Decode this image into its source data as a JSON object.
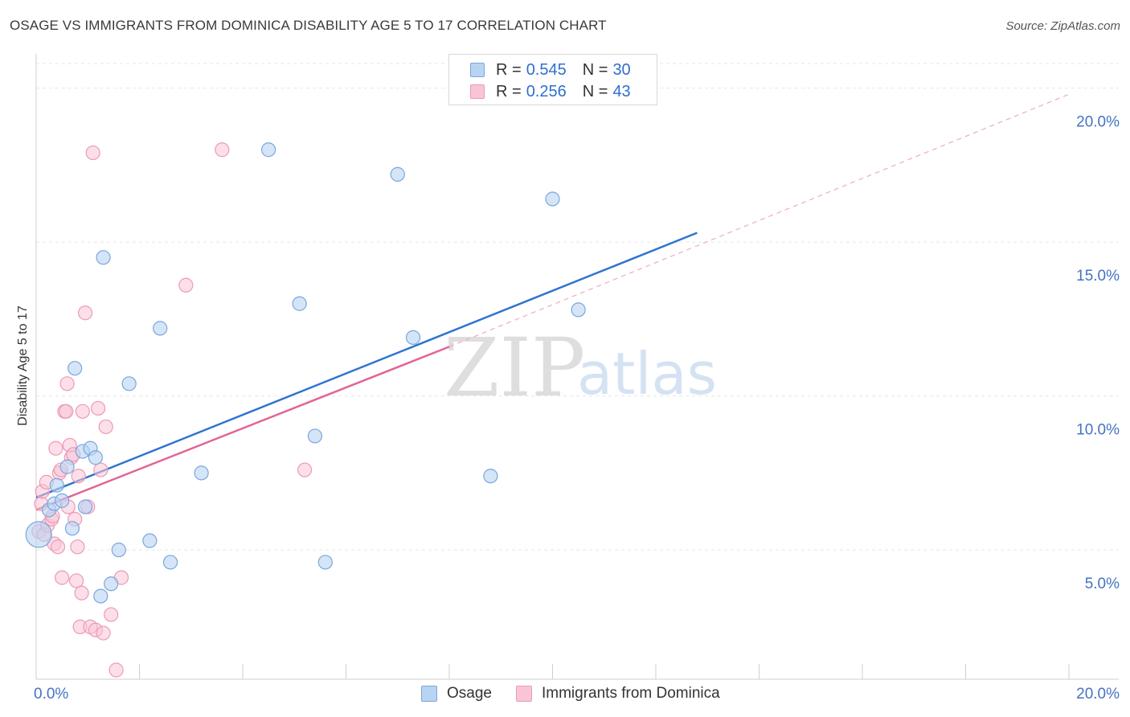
{
  "header": {
    "title": "OSAGE VS IMMIGRANTS FROM DOMINICA DISABILITY AGE 5 TO 17 CORRELATION CHART",
    "source": "Source: ZipAtlas.com"
  },
  "watermark": {
    "zip": "ZIP",
    "atlas": "atlas"
  },
  "legend": {
    "r_label": "R =",
    "n_label": "N =",
    "series": [
      {
        "name": "Osage",
        "r": "0.545",
        "n": "30"
      },
      {
        "name": "Immigrants from Dominica",
        "r": "0.256",
        "n": "43"
      }
    ]
  },
  "chart_data": {
    "type": "scatter",
    "title": "OSAGE VS IMMIGRANTS FROM DOMINICA DISABILITY AGE 5 TO 17 CORRELATION CHART",
    "xlabel": "",
    "ylabel": "Disability Age 5 to 17",
    "xlim": [
      0,
      20
    ],
    "ylim": [
      0.8,
      20.8
    ],
    "x_tick_labels": [
      "0.0%",
      "20.0%"
    ],
    "y_ticks": [
      {
        "value": 5,
        "label": "5.0%"
      },
      {
        "value": 10,
        "label": "10.0%"
      },
      {
        "value": 15,
        "label": "15.0%"
      },
      {
        "value": 20,
        "label": "20.0%"
      }
    ],
    "grid": true,
    "colors": {
      "osage_fill": "#b9d3f3",
      "osage_stroke": "#7aa6dc",
      "osage_line": "#2e74d0",
      "dominica_fill": "#f9c5d6",
      "dominica_stroke": "#ec9ab6",
      "dominica_line": "#e26595",
      "tick_text": "#4472c4",
      "grid": "#e6e6e6"
    },
    "series": [
      {
        "name": "Osage",
        "points": [
          [
            0.05,
            5.5
          ],
          [
            0.25,
            6.3
          ],
          [
            0.35,
            6.5
          ],
          [
            0.4,
            7.1
          ],
          [
            0.5,
            6.6
          ],
          [
            0.6,
            7.7
          ],
          [
            0.7,
            5.7
          ],
          [
            0.75,
            10.9
          ],
          [
            0.9,
            8.2
          ],
          [
            0.95,
            6.4
          ],
          [
            1.05,
            8.3
          ],
          [
            1.15,
            8.0
          ],
          [
            1.25,
            3.5
          ],
          [
            1.3,
            14.5
          ],
          [
            1.45,
            3.9
          ],
          [
            1.6,
            5.0
          ],
          [
            1.8,
            10.4
          ],
          [
            2.2,
            5.3
          ],
          [
            2.4,
            12.2
          ],
          [
            2.6,
            4.6
          ],
          [
            3.2,
            7.5
          ],
          [
            4.5,
            18.0
          ],
          [
            5.1,
            13.0
          ],
          [
            5.4,
            8.7
          ],
          [
            5.6,
            4.6
          ],
          [
            7.0,
            17.2
          ],
          [
            7.3,
            11.9
          ],
          [
            8.8,
            7.4
          ],
          [
            10.0,
            16.4
          ],
          [
            10.5,
            12.8
          ]
        ],
        "trend": {
          "x": [
            0.0,
            12.8
          ],
          "y": [
            6.7,
            15.3
          ]
        }
      },
      {
        "name": "Immigrants from Dominica",
        "points": [
          [
            0.05,
            5.6
          ],
          [
            0.1,
            6.5
          ],
          [
            0.12,
            6.9
          ],
          [
            0.15,
            5.5
          ],
          [
            0.2,
            7.2
          ],
          [
            0.22,
            5.8
          ],
          [
            0.3,
            6.0
          ],
          [
            0.32,
            6.1
          ],
          [
            0.35,
            5.2
          ],
          [
            0.38,
            8.3
          ],
          [
            0.42,
            5.1
          ],
          [
            0.45,
            7.5
          ],
          [
            0.48,
            7.6
          ],
          [
            0.5,
            4.1
          ],
          [
            0.55,
            9.5
          ],
          [
            0.58,
            9.5
          ],
          [
            0.6,
            10.4
          ],
          [
            0.62,
            6.4
          ],
          [
            0.65,
            8.4
          ],
          [
            0.68,
            8.0
          ],
          [
            0.72,
            8.1
          ],
          [
            0.75,
            6.0
          ],
          [
            0.78,
            4.0
          ],
          [
            0.8,
            5.1
          ],
          [
            0.82,
            7.4
          ],
          [
            0.85,
            2.5
          ],
          [
            0.88,
            3.6
          ],
          [
            0.9,
            9.5
          ],
          [
            0.95,
            12.7
          ],
          [
            1.0,
            6.4
          ],
          [
            1.05,
            2.5
          ],
          [
            1.1,
            17.9
          ],
          [
            1.15,
            2.4
          ],
          [
            1.2,
            9.6
          ],
          [
            1.25,
            7.6
          ],
          [
            1.3,
            2.3
          ],
          [
            1.35,
            9.0
          ],
          [
            1.45,
            2.9
          ],
          [
            1.55,
            1.1
          ],
          [
            1.65,
            4.1
          ],
          [
            2.9,
            13.6
          ],
          [
            3.6,
            18.0
          ],
          [
            5.2,
            7.6
          ]
        ],
        "trend": {
          "x": [
            0.0,
            8.0
          ],
          "y": [
            6.3,
            11.6
          ]
        },
        "trend_extension": {
          "x": [
            8.0,
            20.0
          ],
          "y": [
            11.6,
            19.8
          ]
        }
      }
    ]
  }
}
